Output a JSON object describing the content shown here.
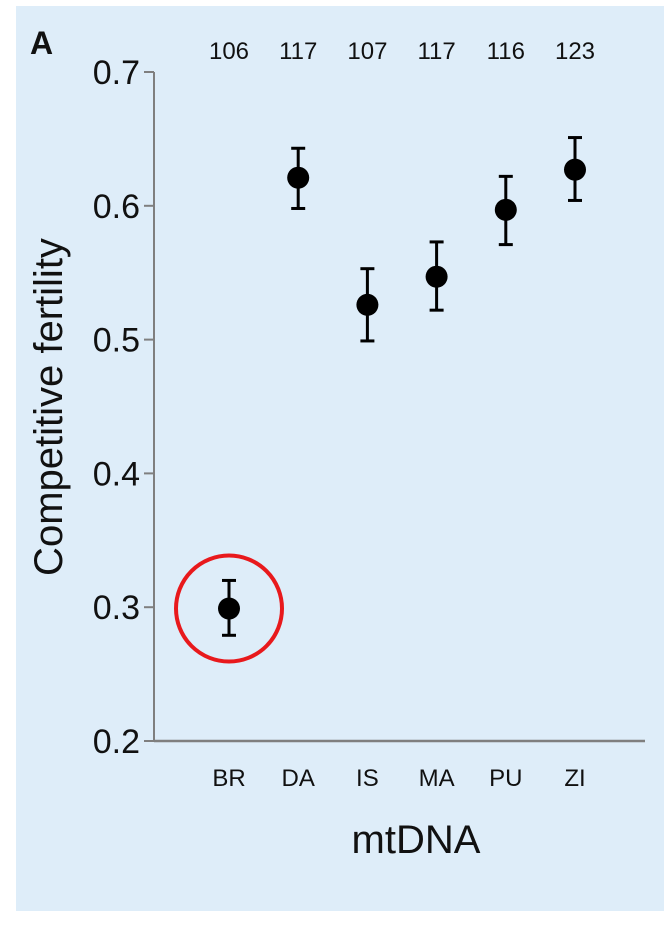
{
  "panel_label": "A",
  "chart_data": {
    "type": "scatter",
    "error_bars": true,
    "xlabel": "mtDNA",
    "ylabel": "Competitive fertility",
    "ylim": [
      0.2,
      0.7
    ],
    "yticks": [
      0.2,
      0.3,
      0.4,
      0.5,
      0.6,
      0.7
    ],
    "ytick_labels": [
      "0.2",
      "0.3",
      "0.4",
      "0.5",
      "0.6",
      "0.7"
    ],
    "categories": [
      "BR",
      "DA",
      "IS",
      "MA",
      "PU",
      "ZI"
    ],
    "sample_sizes": [
      "106",
      "117",
      "107",
      "117",
      "116",
      "123"
    ],
    "values": [
      0.299,
      0.621,
      0.526,
      0.547,
      0.597,
      0.627
    ],
    "lower": [
      0.279,
      0.598,
      0.499,
      0.522,
      0.571,
      0.604
    ],
    "upper": [
      0.32,
      0.643,
      0.553,
      0.573,
      0.622,
      0.651
    ],
    "grid": false,
    "highlight": {
      "category": "BR",
      "shape": "circle",
      "color": "#e8191c"
    },
    "colors": {
      "background": "#deedf9",
      "marker": "#000000",
      "axis": "#7f7f7f"
    }
  }
}
